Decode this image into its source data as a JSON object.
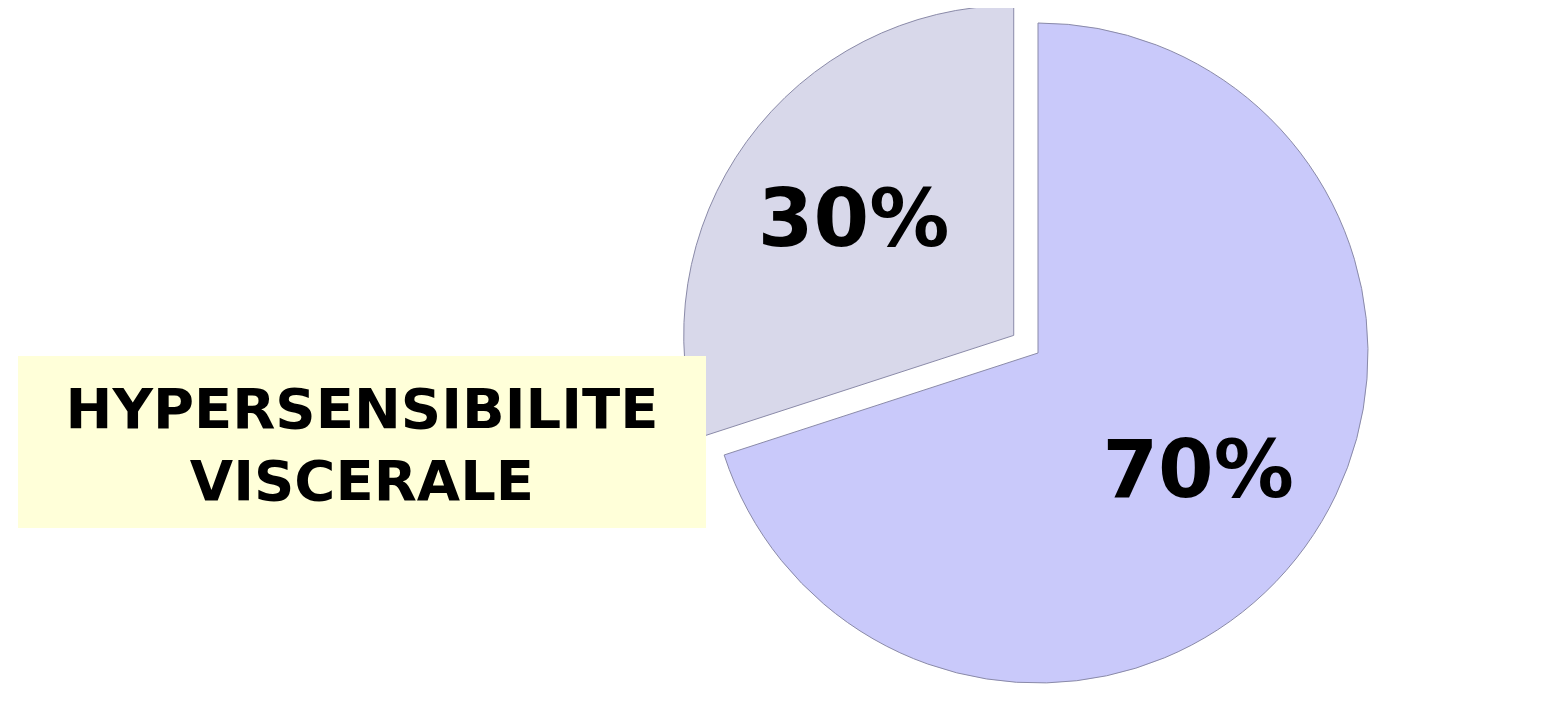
{
  "chart_data": {
    "type": "pie",
    "categories": [
      null,
      null
    ],
    "values": [
      70,
      30
    ],
    "colors": [
      "#c9c9fa",
      "#d8d8ea"
    ],
    "value_labels": [
      "70%",
      "30%"
    ],
    "annotations": [
      "HYPERSENSIBILITE VISCERALE"
    ]
  }
}
